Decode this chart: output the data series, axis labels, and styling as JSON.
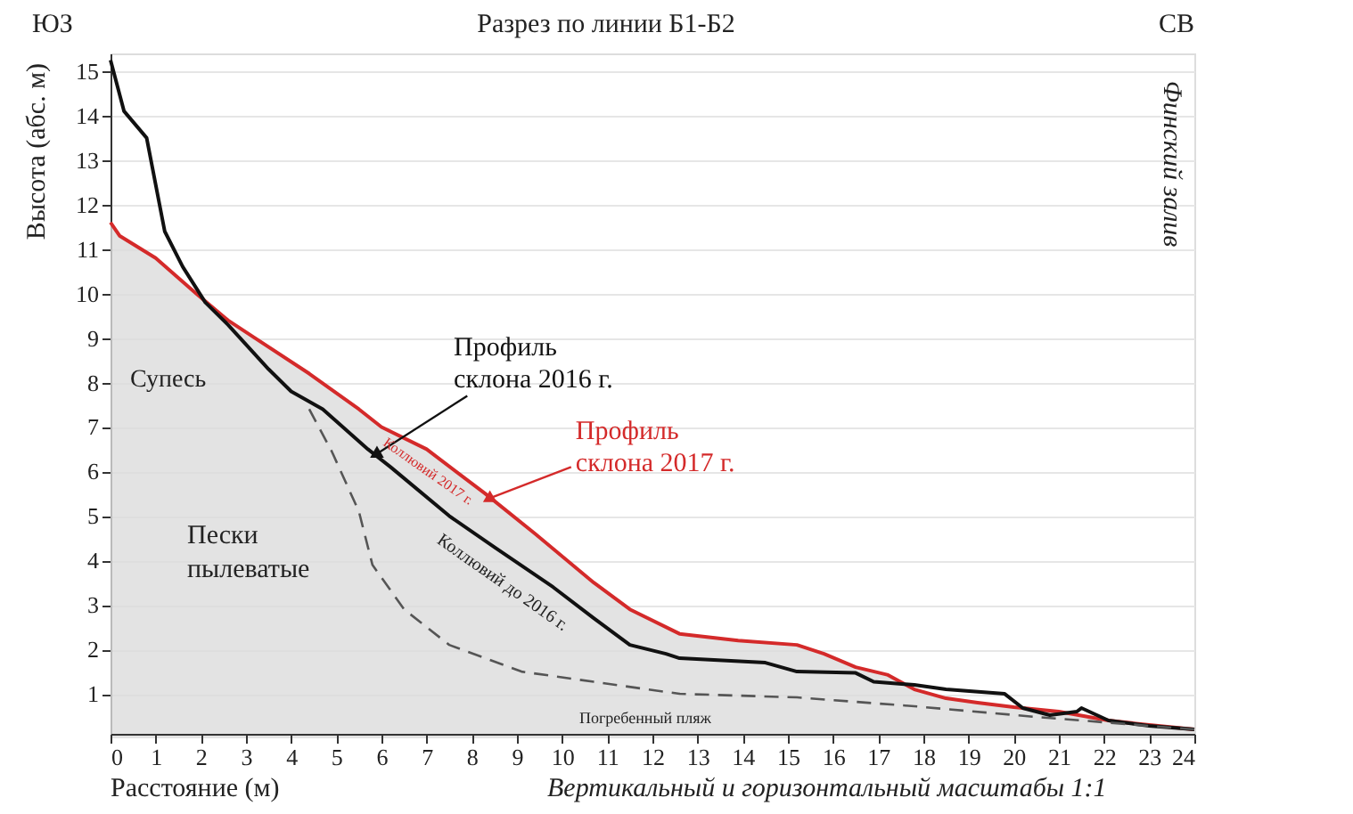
{
  "chart_data": {
    "type": "line",
    "title": "Разрез по линии Б1-Б2",
    "xlabel": "Расстояние (м)",
    "ylabel": "Высота (абс. м)",
    "xlim": [
      0,
      24
    ],
    "xticks": [
      0,
      1,
      2,
      3,
      4,
      5,
      6,
      7,
      8,
      9,
      10,
      11,
      12,
      13,
      14,
      15,
      16,
      17,
      18,
      19,
      20,
      21,
      22,
      23,
      24
    ],
    "ylim": [
      0.1,
      15.4
    ],
    "yticks": [
      1,
      2,
      3,
      4,
      5,
      6,
      7,
      8,
      9,
      10,
      11,
      12,
      13,
      14,
      15
    ],
    "grid": "y",
    "series": [
      {
        "name": "Профиль склона 2017 г.",
        "type": "area",
        "color": "#d42a2a",
        "x": [
          0,
          0.2,
          1.0,
          1.9,
          2.6,
          3.2,
          4.4,
          5.5,
          6.0,
          7.0,
          8.3,
          9.4,
          10.7,
          11.5,
          12.6,
          13.9,
          15.2,
          15.8,
          16.5,
          17.2,
          17.8,
          18.5,
          19.2,
          20.0,
          21.0,
          22.1,
          23.0,
          24
        ],
        "values": [
          11.6,
          11.3,
          10.8,
          10.0,
          9.4,
          9.0,
          8.2,
          7.4,
          7.0,
          6.5,
          5.5,
          4.6,
          3.5,
          2.9,
          2.35,
          2.2,
          2.1,
          1.9,
          1.6,
          1.43,
          1.1,
          0.9,
          0.8,
          0.7,
          0.6,
          0.4,
          0.3,
          0.2
        ]
      },
      {
        "name": "Профиль склона 2016 г.",
        "color": "#111111",
        "x": [
          0,
          0.3,
          0.8,
          1.2,
          1.6,
          2.1,
          2.6,
          3.5,
          4.0,
          4.7,
          5.7,
          6.2,
          7.5,
          8.5,
          9.8,
          10.7,
          11.5,
          12.3,
          12.6,
          14.5,
          15.2,
          16.5,
          16.9,
          17.8,
          18.5,
          19.8,
          20.2,
          20.8,
          21.4,
          21.5,
          22.1,
          23.0,
          24
        ],
        "values": [
          15.25,
          14.1,
          13.5,
          11.4,
          10.6,
          9.8,
          9.3,
          8.3,
          7.8,
          7.4,
          6.5,
          6.1,
          5.0,
          4.3,
          3.4,
          2.7,
          2.1,
          1.9,
          1.8,
          1.7,
          1.5,
          1.47,
          1.27,
          1.2,
          1.1,
          1.0,
          0.68,
          0.52,
          0.6,
          0.68,
          0.4,
          0.28,
          0.2
        ]
      },
      {
        "line_style": "dashed",
        "color": "#555555",
        "x": [
          4.4,
          4.9,
          5.5,
          5.8,
          6.5,
          7.5,
          9.1,
          10.7,
          12.6,
          15.2,
          17.8,
          20.5,
          22.5,
          24
        ],
        "values": [
          7.4,
          6.45,
          5.1,
          3.9,
          2.9,
          2.1,
          1.5,
          1.27,
          1.0,
          0.92,
          0.72,
          0.48,
          0.32,
          0.2
        ]
      }
    ],
    "annotations": [
      "ЮЗ",
      "СВ",
      "Финский залив",
      "Супесь",
      "Пески пылеватые",
      "Коллювий 2017 г.",
      "Коллювий до 2016 г.",
      "Погребенный пляж",
      "Вертикальный и горизонтальный масштабы 1:1"
    ]
  }
}
